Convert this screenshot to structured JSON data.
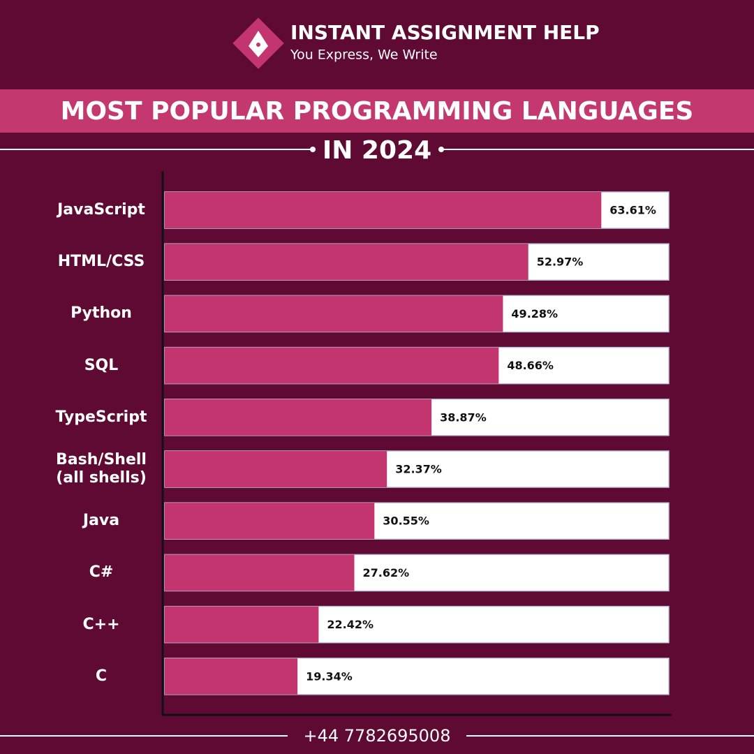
{
  "brand": {
    "name": "INSTANT ASSIGNMENT HELP",
    "tagline": "You Express, We Write"
  },
  "chart_data": {
    "type": "bar",
    "orientation": "horizontal",
    "title": "MOST POPULAR PROGRAMMING LANGUAGES",
    "subtitle": "IN 2024",
    "categories": [
      "JavaScript",
      "HTML/CSS",
      "Python",
      "SQL",
      "TypeScript",
      "Bash/Shell (all shells)",
      "Java",
      "C#",
      "C++",
      "C"
    ],
    "values": [
      63.61,
      52.97,
      49.28,
      48.66,
      38.87,
      32.37,
      30.55,
      27.62,
      22.42,
      19.34
    ],
    "value_labels": [
      "63.61%",
      "52.97%",
      "49.28%",
      "48.66%",
      "38.87%",
      "32.37%",
      "30.55%",
      "27.62%",
      "22.42%",
      "19.34%"
    ],
    "color": "#c2356e"
  },
  "footer": {
    "phone": "+44 7782695008"
  }
}
